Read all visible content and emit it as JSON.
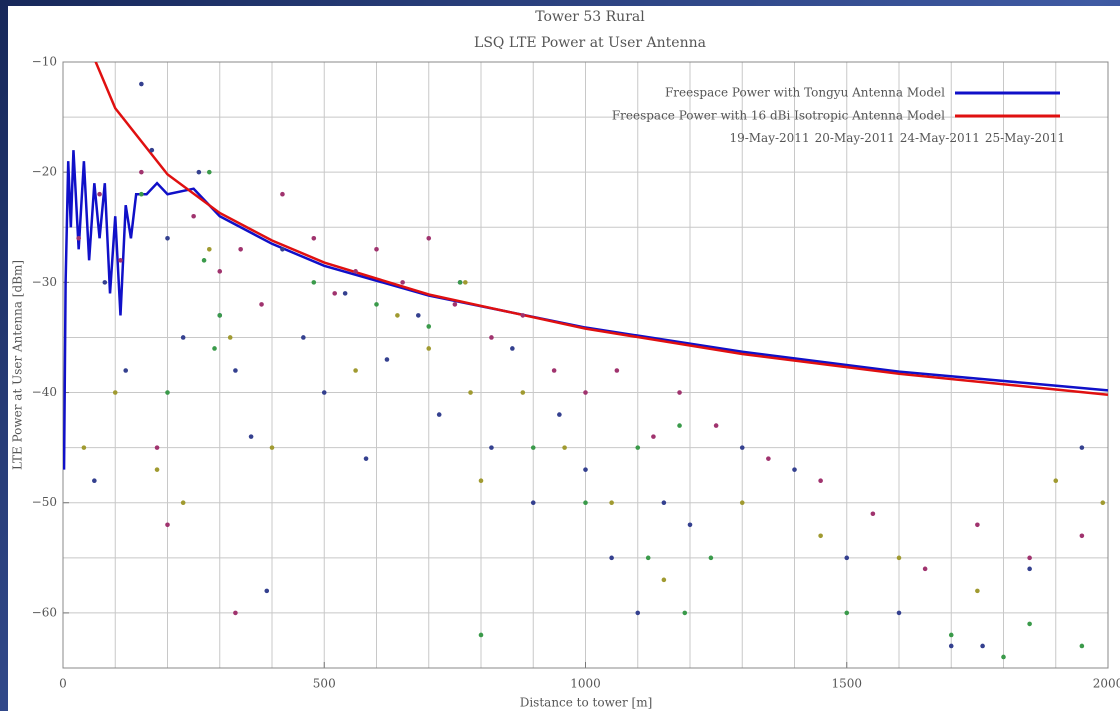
{
  "chart_data": {
    "type": "scatter",
    "title": "Tower 53 Rural",
    "subtitle": "LSQ LTE Power at User Antenna",
    "x_label": "Distance to tower [m]",
    "y_label": "LTE Power at User Antenna [dBm]",
    "xlim": [
      0,
      2000
    ],
    "ylim": [
      -65,
      -10
    ],
    "xticks": [
      0,
      500,
      1000,
      1500,
      2000
    ],
    "yticks": [
      {
        "value": -60,
        "label": "−60"
      },
      {
        "value": -50,
        "label": "−50"
      },
      {
        "value": -40,
        "label": "−40"
      },
      {
        "value": -30,
        "label": "−30"
      },
      {
        "value": -20,
        "label": "−20"
      },
      {
        "value": -10,
        "label": "−10"
      }
    ],
    "grid": true,
    "minor_grid": true,
    "legend": "upper right",
    "series": [
      {
        "name": "Freespace Power with Tongyu Antenna Model",
        "color": "#1010c8",
        "style": "line",
        "x": [
          2,
          5,
          10,
          15,
          20,
          30,
          40,
          50,
          60,
          70,
          80,
          90,
          100,
          110,
          120,
          130,
          140,
          160,
          180,
          200,
          250,
          300,
          400,
          500,
          700,
          1000,
          1300,
          1600,
          2000
        ],
        "values": [
          -47,
          -30,
          -19,
          -25,
          -18,
          -27,
          -19,
          -28,
          -21,
          -26,
          -21,
          -31,
          -24,
          -33,
          -23,
          -26,
          -22,
          -22,
          -21,
          -22,
          -21.5,
          -24,
          -26.5,
          -28.5,
          -31.2,
          -34.1,
          -36.3,
          -38.1,
          -39.8
        ]
      },
      {
        "name": "Freespace Power with 16 dBi Isotropic Antenna Model",
        "color": "#e01010",
        "style": "line",
        "x": [
          60,
          100,
          200,
          300,
          400,
          500,
          700,
          1000,
          1300,
          1600,
          2000
        ],
        "values": [
          -9.7,
          -14.2,
          -20.2,
          -23.7,
          -26.2,
          -28.2,
          -31.1,
          -34.2,
          -36.5,
          -38.3,
          -40.2
        ]
      },
      {
        "name": "19-May-2011",
        "color": "#34408f",
        "style": "dots",
        "x": [
          60,
          80,
          120,
          150,
          170,
          200,
          230,
          260,
          300,
          330,
          360,
          390,
          420,
          460,
          500,
          540,
          580,
          620,
          680,
          720,
          760,
          820,
          860,
          900,
          950,
          1000,
          1050,
          1100,
          1150,
          1200,
          1300,
          1400,
          1500,
          1600,
          1700,
          1760,
          1850,
          1950
        ],
        "values": [
          -48,
          -30,
          -38,
          -12,
          -18,
          -26,
          -35,
          -20,
          -33,
          -38,
          -44,
          -58,
          -27,
          -35,
          -40,
          -31,
          -46,
          -37,
          -33,
          -42,
          -30,
          -45,
          -36,
          -50,
          -42,
          -47,
          -55,
          -60,
          -50,
          -52,
          -45,
          -47,
          -55,
          -60,
          -63,
          -63,
          -56,
          -45
        ]
      },
      {
        "name": "20-May-2011",
        "color": "#a09a30",
        "style": "dots",
        "x": [
          40,
          100,
          180,
          230,
          280,
          320,
          400,
          560,
          640,
          700,
          770,
          780,
          800,
          880,
          960,
          1050,
          1150,
          1300,
          1450,
          1600,
          1750,
          1900,
          1990
        ],
        "values": [
          -45,
          -40,
          -47,
          -50,
          -27,
          -35,
          -45,
          -38,
          -33,
          -36,
          -30,
          -40,
          -48,
          -40,
          -45,
          -50,
          -57,
          -50,
          -53,
          -55,
          -58,
          -48,
          -50
        ]
      },
      {
        "name": "24-May-2011",
        "color": "#3a9a4a",
        "style": "dots",
        "x": [
          150,
          200,
          270,
          280,
          290,
          300,
          480,
          600,
          700,
          760,
          800,
          900,
          1000,
          1100,
          1120,
          1180,
          1190,
          1240,
          1500,
          1700,
          1800,
          1850,
          1950
        ],
        "values": [
          -22,
          -40,
          -28,
          -20,
          -36,
          -33,
          -30,
          -32,
          -34,
          -30,
          -62,
          -45,
          -50,
          -45,
          -55,
          -43,
          -60,
          -55,
          -60,
          -62,
          -64,
          -61,
          -63
        ]
      },
      {
        "name": "25-May-2011",
        "color": "#a0336e",
        "style": "dots",
        "x": [
          30,
          70,
          110,
          150,
          180,
          200,
          250,
          300,
          330,
          340,
          380,
          420,
          480,
          520,
          560,
          600,
          650,
          700,
          750,
          820,
          880,
          940,
          1000,
          1060,
          1130,
          1180,
          1250,
          1350,
          1450,
          1550,
          1650,
          1750,
          1850,
          1950
        ],
        "values": [
          -26,
          -22,
          -28,
          -20,
          -45,
          -52,
          -24,
          -29,
          -60,
          -27,
          -32,
          -22,
          -26,
          -31,
          -29,
          -27,
          -30,
          -26,
          -32,
          -35,
          -33,
          -38,
          -40,
          -38,
          -44,
          -40,
          -43,
          -46,
          -48,
          -51,
          -56,
          -52,
          -55,
          -53
        ]
      }
    ]
  }
}
